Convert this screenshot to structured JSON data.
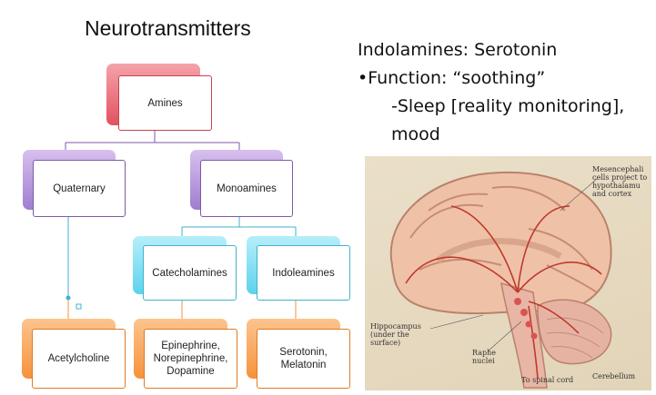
{
  "title": "Neurotransmitters",
  "bullets": {
    "line1": "Indolamines: Serotonin",
    "line2": "•Function: “soothing”",
    "line3": "-Sleep [reality monitoring],",
    "line4": "mood"
  },
  "tree": {
    "root": "Amines",
    "quaternary": "Quaternary",
    "monoamines": "Monoamines",
    "catecholamines": "Catecholamines",
    "indoleamines": "Indoleamines",
    "acetylcholine": "Acetylcholine",
    "catechol_examples": "Epinephrine,\nNorepinephrine,\nDopamine",
    "indole_examples": "Serotonin,\nMelatonin"
  },
  "figure": {
    "labels": {
      "mesencephalic": "Mesencephali\ncells project to\nhypothalamu\nand cortex",
      "hippocampus": "Hippocampus\n(under the\nsurface)",
      "raphe": "Raphe\nnuclei",
      "spinal": "To spinal cord",
      "cerebellum": "Cerebellum"
    }
  },
  "colors": {
    "red": "#e2515f",
    "purple": "#a07ccf",
    "cyan": "#5bd3ec",
    "orange": "#f6923c",
    "connector_purple": "#7d5aa8",
    "connector_cyan": "#3fb3cd"
  }
}
